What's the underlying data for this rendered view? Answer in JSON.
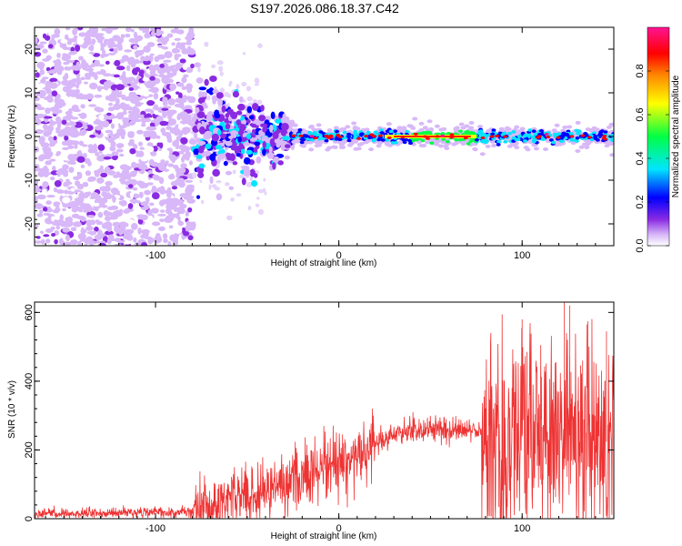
{
  "title": "S197.2026.086.18.37.C42",
  "chart_data": [
    {
      "type": "heatmap",
      "name": "spectrogram",
      "xlabel": "Height of straight line (km)",
      "ylabel": "Frequency (Hz)",
      "xlim": [
        -166,
        150
      ],
      "ylim": [
        -25,
        25
      ],
      "xticks": [
        -100,
        0,
        100
      ],
      "yticks": [
        -20,
        -10,
        0,
        10,
        20
      ],
      "colorbar": {
        "label": "Normalized spectral amplitude",
        "range": [
          0,
          1
        ],
        "ticks": [
          "0.0",
          "0.2",
          "0.4",
          "0.6",
          "0.8"
        ],
        "tick_values": [
          0,
          0.2,
          0.4,
          0.6,
          0.8
        ],
        "colormap": [
          "#ffffff",
          "#d8b8f8",
          "#8a2be2",
          "#0000ff",
          "#00e5ff",
          "#00ff44",
          "#ffff00",
          "#ff8800",
          "#ff0000",
          "#ff1493"
        ]
      },
      "description_regions": {
        "noise_region_x": [
          -166,
          -80
        ],
        "transition_x": [
          -80,
          -25
        ],
        "signal_region_x": [
          -25,
          150
        ],
        "signal_freq_hz": 0
      }
    },
    {
      "type": "line",
      "name": "snr",
      "xlabel": "Height of straight line (km)",
      "ylabel": "SNR (10 * v/v)",
      "xlim": [
        -166,
        150
      ],
      "ylim": [
        0,
        630
      ],
      "xticks": [
        -100,
        0,
        100
      ],
      "yticks": [
        0,
        200,
        400,
        600
      ],
      "color": "#ee3333",
      "series_profile": [
        {
          "x": -166,
          "y": 15
        },
        {
          "x": -100,
          "y": 18
        },
        {
          "x": -80,
          "y": 20
        },
        {
          "x": -70,
          "y": 35
        },
        {
          "x": -60,
          "y": 65
        },
        {
          "x": -50,
          "y": 70
        },
        {
          "x": -40,
          "y": 70
        },
        {
          "x": -30,
          "y": 110
        },
        {
          "x": -20,
          "y": 120
        },
        {
          "x": -10,
          "y": 150
        },
        {
          "x": 0,
          "y": 160
        },
        {
          "x": 10,
          "y": 185
        },
        {
          "x": 20,
          "y": 220
        },
        {
          "x": 30,
          "y": 245
        },
        {
          "x": 40,
          "y": 260
        },
        {
          "x": 50,
          "y": 262
        },
        {
          "x": 60,
          "y": 258
        },
        {
          "x": 70,
          "y": 255
        },
        {
          "x": 78,
          "y": 255
        },
        {
          "x": 80,
          "y": 240
        },
        {
          "x": 90,
          "y": 230
        },
        {
          "x": 100,
          "y": 240
        },
        {
          "x": 110,
          "y": 250
        },
        {
          "x": 120,
          "y": 245
        },
        {
          "x": 130,
          "y": 240
        },
        {
          "x": 140,
          "y": 230
        },
        {
          "x": 150,
          "y": 220
        }
      ],
      "peaks": [
        {
          "x": 100,
          "y": 580
        },
        {
          "x": 123,
          "y": 630
        },
        {
          "x": 126,
          "y": 620
        },
        {
          "x": 146,
          "y": 545
        },
        {
          "x": 133,
          "y": 460
        }
      ]
    }
  ]
}
